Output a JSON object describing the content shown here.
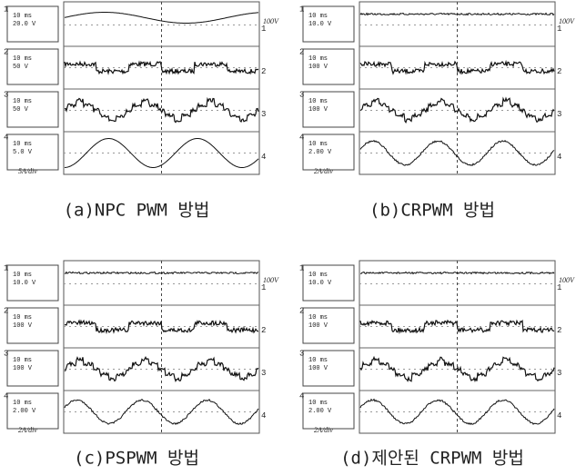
{
  "panels": [
    {
      "caption": "(a)NPC PWM 방법",
      "range_label": "100V",
      "scale_note": "5A/div",
      "channels": [
        {
          "number": "1",
          "time": "10 ms",
          "volt": "20.0 V"
        },
        {
          "number": "2",
          "time": "10 ms",
          "volt": "50 V"
        },
        {
          "number": "3",
          "time": "10 ms",
          "volt": "50 V"
        },
        {
          "number": "4",
          "time": "10 ms",
          "volt": "5.0 V"
        }
      ]
    },
    {
      "caption": "(b)CRPWM 방법",
      "range_label": "100V",
      "scale_note": "2A/div",
      "channels": [
        {
          "number": "1",
          "time": "10 ms",
          "volt": "10.0 V"
        },
        {
          "number": "2",
          "time": "10 ms",
          "volt": "100 V"
        },
        {
          "number": "3",
          "time": "10 ms",
          "volt": "100 V"
        },
        {
          "number": "4",
          "time": "10 ms",
          "volt": "2.00 V"
        }
      ]
    },
    {
      "caption": "(c)PSPWM 방법",
      "range_label": "100V",
      "scale_note": "2A/div",
      "channels": [
        {
          "number": "1",
          "time": "10 ms",
          "volt": "10.0 V"
        },
        {
          "number": "2",
          "time": "10 ms",
          "volt": "100 V"
        },
        {
          "number": "3",
          "time": "10 ms",
          "volt": "100 V"
        },
        {
          "number": "4",
          "time": "10 ms",
          "volt": "2.00 V"
        }
      ]
    },
    {
      "caption": "(d)제안된 CRPWM 방법",
      "range_label": "100V",
      "scale_note": "2A/div",
      "channels": [
        {
          "number": "1",
          "time": "10 ms",
          "volt": "10.0 V"
        },
        {
          "number": "2",
          "time": "10 ms",
          "volt": "100 V"
        },
        {
          "number": "3",
          "time": "10 ms",
          "volt": "100 V"
        },
        {
          "number": "4",
          "time": "10 ms",
          "volt": "2.00 V"
        }
      ]
    }
  ]
}
